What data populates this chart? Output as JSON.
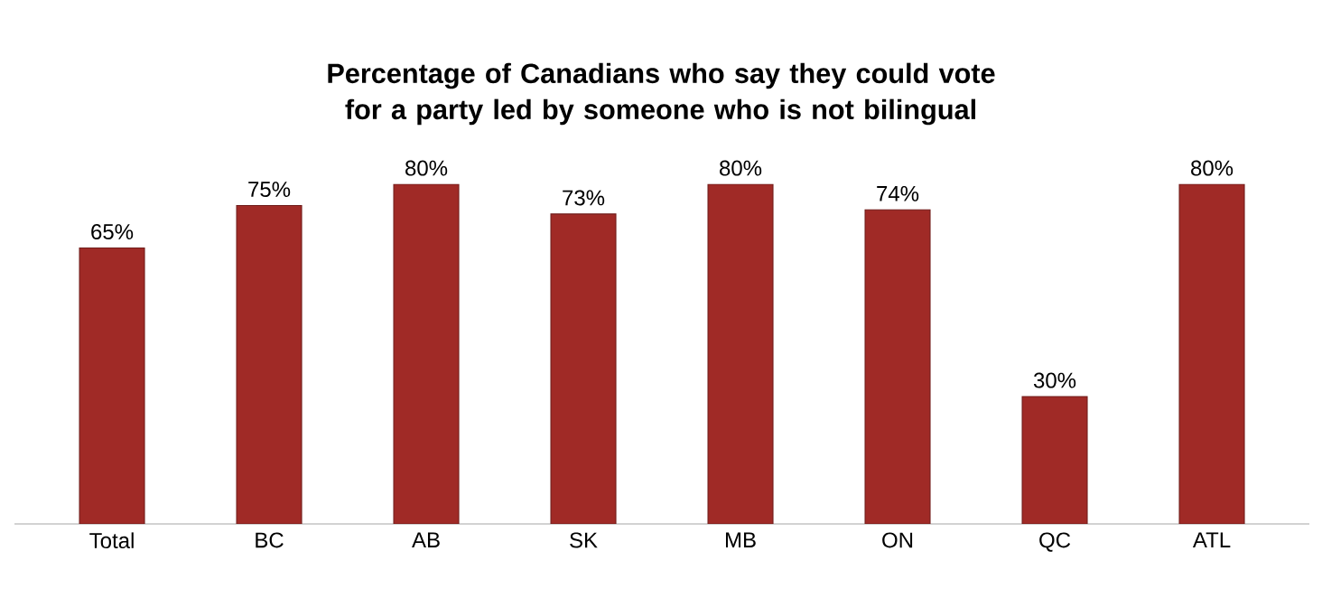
{
  "chart_data": {
    "type": "bar",
    "title": "Percentage of Canadians who say they could vote for a party led by someone who is not bilingual",
    "categories": [
      "Total",
      "BC",
      "AB",
      "SK",
      "MB",
      "ON",
      "QC",
      "ATL"
    ],
    "values": [
      65,
      75,
      80,
      73,
      80,
      74,
      30,
      80
    ],
    "value_labels": [
      "65%",
      "75%",
      "80%",
      "73%",
      "80%",
      "74%",
      "30%",
      "80%"
    ],
    "color": "#a02a26",
    "tick_labels": "x"
  }
}
